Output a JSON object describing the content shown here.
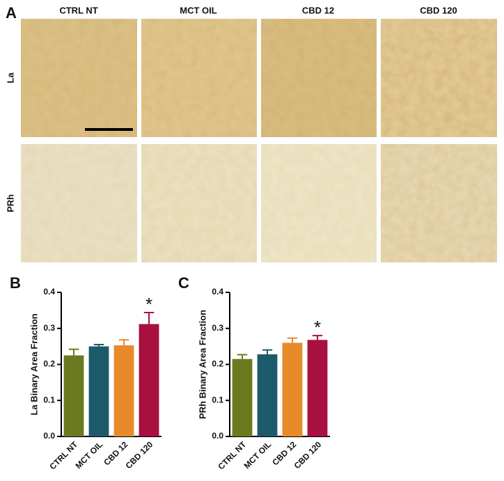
{
  "micrographs": {
    "label": "A",
    "columns": [
      "CTRL NT",
      "MCT OIL",
      "CBD 12",
      "CBD 120"
    ],
    "rows": [
      "La",
      "PRh"
    ]
  },
  "chart_data": [
    {
      "type": "bar",
      "panel_label": "B",
      "y_label": "La Binary Area Fraction",
      "categories": [
        "CTRL NT",
        "MCT OIL",
        "CBD 12",
        "CBD 120"
      ],
      "values": [
        0.225,
        0.25,
        0.253,
        0.312
      ],
      "errors": [
        0.017,
        0.005,
        0.015,
        0.032
      ],
      "colors": [
        "#6b7a1f",
        "#1d5a6b",
        "#e8892a",
        "#a8103f"
      ],
      "annotations": [
        null,
        null,
        null,
        "*"
      ],
      "ylim": [
        0,
        0.4
      ],
      "yticks": [
        {
          "value": 0,
          "label": "0.0"
        },
        0.1,
        0.2,
        0.3,
        0.4
      ]
    },
    {
      "type": "bar",
      "panel_label": "C",
      "y_label": "PRh Binary Area Fraction",
      "categories": [
        "CTRL NT",
        "MCT OIL",
        "CBD 12",
        "CBD 120"
      ],
      "values": [
        0.215,
        0.228,
        0.26,
        0.268
      ],
      "errors": [
        0.012,
        0.012,
        0.013,
        0.012
      ],
      "colors": [
        "#6b7a1f",
        "#1d5a6b",
        "#e8892a",
        "#a8103f"
      ],
      "annotations": [
        null,
        null,
        null,
        "*"
      ],
      "ylim": [
        0,
        0.4
      ],
      "yticks": [
        {
          "value": 0,
          "label": "0.0"
        },
        0.1,
        0.2,
        0.3,
        0.4
      ]
    }
  ]
}
